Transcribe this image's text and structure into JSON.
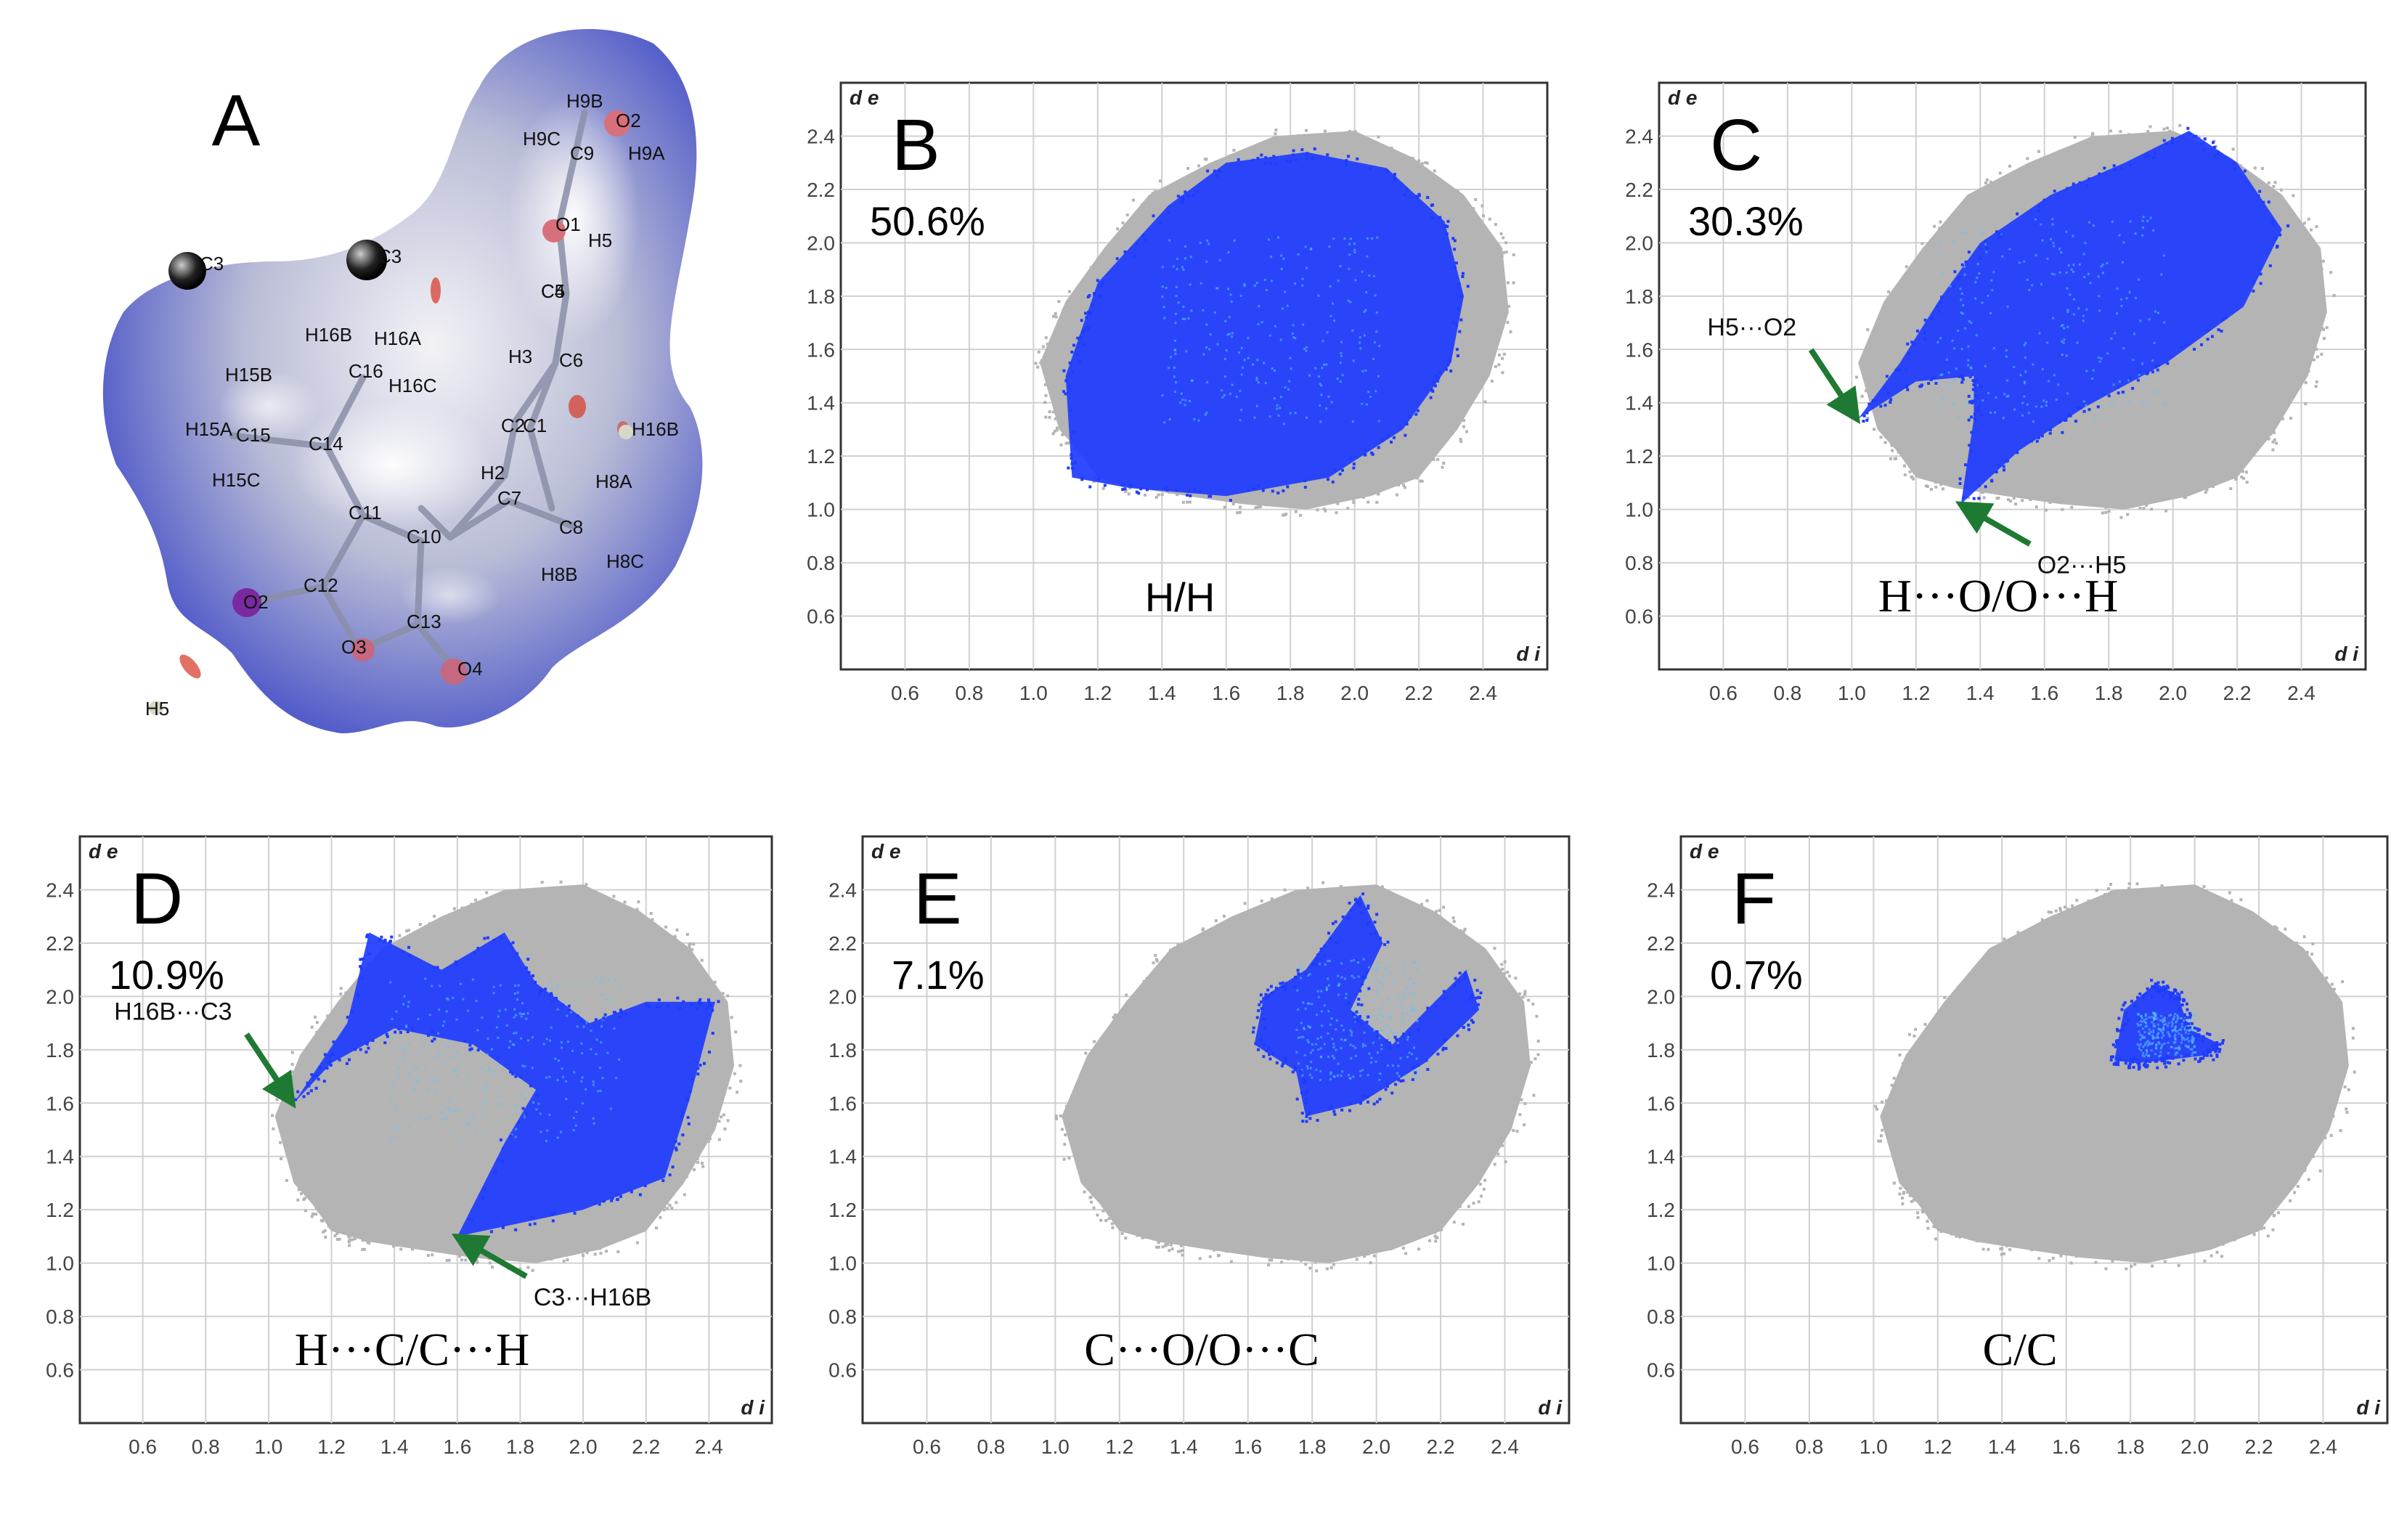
{
  "panelA": {
    "letter": "A",
    "atom_labels": [
      "H9B",
      "O2",
      "H9C",
      "C9",
      "H9A",
      "O1",
      "H5",
      "C3",
      "C3",
      "C5",
      "C4",
      "H16B",
      "H16A",
      "C16",
      "H15B",
      "H16C",
      "C6",
      "H3",
      "C1",
      "C2",
      "H16B",
      "H15A",
      "C15",
      "C14",
      "H15C",
      "H2",
      "C7",
      "H8A",
      "C11",
      "C10",
      "C8",
      "H8B",
      "H8C",
      "C12",
      "O2",
      "C13",
      "O3",
      "O4",
      "H5"
    ]
  },
  "axes": {
    "de_label": "d e",
    "di_label": "d i",
    "x_ticks": [
      "0.6",
      "0.8",
      "1.0",
      "1.2",
      "1.4",
      "1.6",
      "1.8",
      "2.0",
      "2.2",
      "2.4"
    ],
    "y_ticks": [
      "2.4",
      "2.2",
      "2.0",
      "1.8",
      "1.6",
      "1.4",
      "1.2",
      "1.0",
      "0.8",
      "0.6"
    ]
  },
  "colors": {
    "background_cloud": "#b4b4b4",
    "highlight_cloud": "#1e3cff",
    "highlight_core": "#58c8ff",
    "arrow": "#1e7a32",
    "grid": "#d0d0d0",
    "frame": "#333333"
  },
  "chart_data": [
    {
      "panel": "B",
      "type": "scatter",
      "percent": "50.6%",
      "contact": "H/H",
      "xlim": [
        0.4,
        2.6
      ],
      "ylim": [
        0.4,
        2.6
      ],
      "highlight_outline": [
        [
          1.12,
          1.12
        ],
        [
          1.1,
          1.5
        ],
        [
          1.2,
          1.85
        ],
        [
          1.42,
          2.14
        ],
        [
          1.6,
          2.3
        ],
        [
          1.85,
          2.34
        ],
        [
          2.1,
          2.28
        ],
        [
          2.28,
          2.08
        ],
        [
          2.34,
          1.8
        ],
        [
          2.3,
          1.55
        ],
        [
          2.15,
          1.3
        ],
        [
          1.92,
          1.12
        ],
        [
          1.6,
          1.05
        ],
        [
          1.3,
          1.08
        ]
      ],
      "annotations": []
    },
    {
      "panel": "C",
      "type": "scatter",
      "percent": "30.3%",
      "contact": "H···O/O···H",
      "xlim": [
        0.4,
        2.6
      ],
      "ylim": [
        0.4,
        2.6
      ],
      "highlight_outline": [
        [
          1.02,
          1.34
        ],
        [
          1.2,
          1.48
        ],
        [
          1.38,
          1.5
        ],
        [
          1.38,
          1.34
        ],
        [
          1.34,
          1.02
        ],
        [
          1.52,
          1.22
        ],
        [
          1.72,
          1.38
        ],
        [
          1.98,
          1.55
        ],
        [
          2.22,
          1.76
        ],
        [
          2.34,
          2.05
        ],
        [
          2.2,
          2.3
        ],
        [
          2.05,
          2.42
        ],
        [
          1.85,
          2.3
        ],
        [
          1.62,
          2.18
        ],
        [
          1.4,
          2.0
        ],
        [
          1.28,
          1.8
        ],
        [
          1.15,
          1.55
        ]
      ],
      "annotations": [
        {
          "text": "H5···O2",
          "x": 1.02,
          "y": 1.34
        },
        {
          "text": "O2···H5",
          "x": 1.34,
          "y": 1.02
        }
      ]
    },
    {
      "panel": "D",
      "type": "scatter",
      "percent": "10.9%",
      "contact": "H···C/C···H",
      "xlim": [
        0.4,
        2.6
      ],
      "ylim": [
        0.4,
        2.6
      ],
      "highlight_outline": [
        [
          1.08,
          1.6
        ],
        [
          1.25,
          1.9
        ],
        [
          1.32,
          2.24
        ],
        [
          1.55,
          2.1
        ],
        [
          1.75,
          2.24
        ],
        [
          1.85,
          2.05
        ],
        [
          2.02,
          1.9
        ],
        [
          2.2,
          1.98
        ],
        [
          2.42,
          1.98
        ],
        [
          2.34,
          1.62
        ],
        [
          2.26,
          1.32
        ],
        [
          2.0,
          1.2
        ],
        [
          1.6,
          1.1
        ],
        [
          1.75,
          1.45
        ],
        [
          1.85,
          1.65
        ],
        [
          1.65,
          1.82
        ],
        [
          1.4,
          1.88
        ],
        [
          1.2,
          1.75
        ]
      ],
      "annotations": [
        {
          "text": "H16B···C3",
          "x": 1.08,
          "y": 1.6
        },
        {
          "text": "C3···H16B",
          "x": 1.6,
          "y": 1.1
        }
      ]
    },
    {
      "panel": "E",
      "type": "scatter",
      "percent": "7.1%",
      "contact": "C···O/O···C",
      "xlim": [
        0.4,
        2.6
      ],
      "ylim": [
        0.4,
        2.6
      ],
      "highlight_outline": [
        [
          1.62,
          1.82
        ],
        [
          1.65,
          2.0
        ],
        [
          1.78,
          2.1
        ],
        [
          1.95,
          2.38
        ],
        [
          2.02,
          2.2
        ],
        [
          1.92,
          1.95
        ],
        [
          2.05,
          1.82
        ],
        [
          2.28,
          2.1
        ],
        [
          2.32,
          1.95
        ],
        [
          2.15,
          1.75
        ],
        [
          1.95,
          1.6
        ],
        [
          1.78,
          1.55
        ],
        [
          1.75,
          1.72
        ]
      ],
      "annotations": []
    },
    {
      "panel": "F",
      "type": "scatter",
      "percent": "0.7%",
      "contact": "C/C",
      "xlim": [
        0.4,
        2.6
      ],
      "ylim": [
        0.4,
        2.6
      ],
      "highlight_outline": [
        [
          1.75,
          1.76
        ],
        [
          1.78,
          1.95
        ],
        [
          1.88,
          2.05
        ],
        [
          1.95,
          2.0
        ],
        [
          1.98,
          1.88
        ],
        [
          2.08,
          1.82
        ],
        [
          2.04,
          1.78
        ],
        [
          1.9,
          1.76
        ],
        [
          1.82,
          1.75
        ]
      ],
      "annotations": []
    }
  ]
}
